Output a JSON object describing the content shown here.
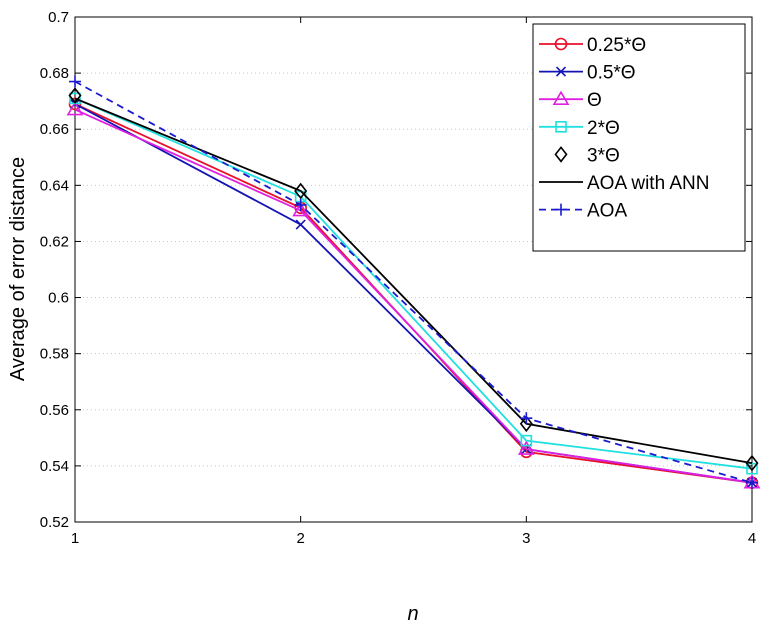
{
  "chart_data": {
    "type": "line",
    "xlabel": "n",
    "ylabel": "Average of error distance",
    "xlim": [
      1,
      4
    ],
    "ylim": [
      0.52,
      0.7
    ],
    "x_ticks": [
      "1",
      "2",
      "3",
      "4"
    ],
    "y_ticks": [
      "0.52",
      "0.54",
      "0.56",
      "0.58",
      "0.6",
      "0.62",
      "0.64",
      "0.66",
      "0.68",
      "0.7"
    ],
    "grid": "horizontal dotted",
    "legend_position": "top-right",
    "x": [
      1,
      2,
      3,
      4
    ],
    "series": [
      {
        "name": "0.25*Θ",
        "values": [
          0.669,
          0.632,
          0.545,
          0.534
        ],
        "color": "#e8102a",
        "marker": "circle",
        "line": "solid"
      },
      {
        "name": "0.5*Θ",
        "values": [
          0.669,
          0.626,
          0.546,
          0.534
        ],
        "color": "#1414b4",
        "marker": "x",
        "line": "solid"
      },
      {
        "name": "Θ",
        "values": [
          0.667,
          0.631,
          0.546,
          0.534
        ],
        "color": "#e020e0",
        "marker": "triangle",
        "line": "solid"
      },
      {
        "name": "2*Θ",
        "values": [
          0.671,
          0.636,
          0.549,
          0.539
        ],
        "color": "#20e0e0",
        "marker": "square",
        "line": "solid"
      },
      {
        "name": "3*Θ",
        "values": [
          0.672,
          0.638,
          0.555,
          0.541
        ],
        "color": "#000000",
        "marker": "diamond",
        "line": "none"
      },
      {
        "name": "AOA with ANN",
        "values": [
          0.671,
          0.638,
          0.555,
          0.541
        ],
        "color": "#000000",
        "marker": "none",
        "line": "solid"
      },
      {
        "name": "AOA",
        "values": [
          0.677,
          0.633,
          0.557,
          0.534
        ],
        "color": "#1a1ad0",
        "marker": "plus",
        "line": "dashed"
      }
    ]
  }
}
